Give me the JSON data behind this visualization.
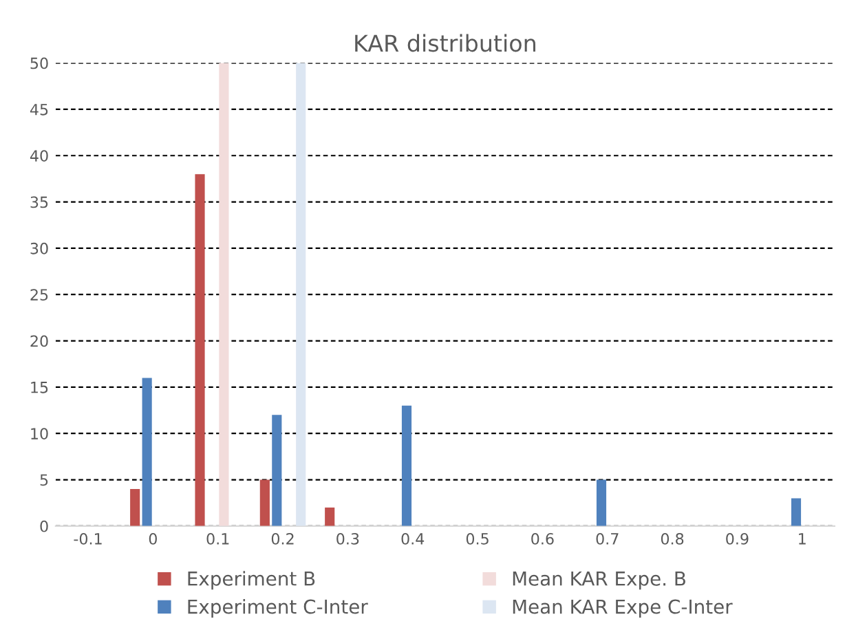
{
  "chart_data": {
    "type": "bar",
    "title": "KAR distribution",
    "categories": [
      "-0.1",
      "0",
      "0.1",
      "0.2",
      "0.3",
      "0.4",
      "0.5",
      "0.6",
      "0.7",
      "0.8",
      "0.9",
      "1"
    ],
    "series": [
      {
        "name": "Experiment B",
        "color": "#c0504d",
        "values": [
          0,
          4,
          38,
          5,
          2,
          0,
          0,
          0,
          0,
          0,
          0,
          0
        ]
      },
      {
        "name": "Experiment C-Inter",
        "color": "#4f81bd",
        "values": [
          0,
          16,
          0,
          12,
          0,
          13,
          0,
          0,
          5,
          0,
          0,
          3
        ]
      },
      {
        "name": "Mean KAR Expe. B",
        "color": "#f2dcdb",
        "values": [
          0,
          0,
          50,
          0,
          0,
          0,
          0,
          0,
          0,
          0,
          0,
          0
        ]
      },
      {
        "name": "Mean KAR Expe C-Inter",
        "color": "#dce6f2",
        "values": [
          0,
          0,
          0,
          50,
          0,
          0,
          0,
          0,
          0,
          0,
          0,
          0
        ]
      }
    ],
    "ylim": [
      0,
      50
    ],
    "yticks": [
      0,
      5,
      10,
      15,
      20,
      25,
      30,
      35,
      40,
      45,
      50
    ],
    "grid": "y",
    "legend": "bottom"
  }
}
